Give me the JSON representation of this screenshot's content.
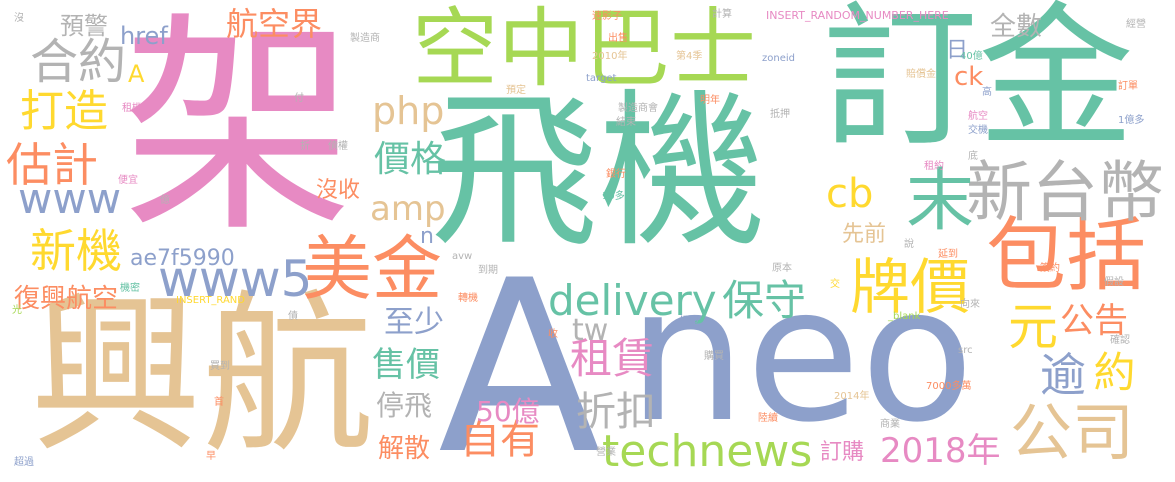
{
  "colors": {
    "green": "#66c2a5",
    "orange": "#fc8d62",
    "blue": "#8da0cb",
    "pink": "#e78ac3",
    "lime": "#a6d854",
    "yellow": "#ffd92f",
    "tan": "#e5c494",
    "gray": "#b3b3b3"
  },
  "words": [
    {
      "text": "飛機",
      "color": "#66c2a5"
    },
    {
      "text": "架",
      "color": "#e78ac3"
    },
    {
      "text": "興航",
      "color": "#e5c494"
    },
    {
      "text": "A",
      "color": "#8da0cb"
    },
    {
      "text": "neo",
      "color": "#8da0cb"
    },
    {
      "text": "訂金",
      "color": "#66c2a5"
    },
    {
      "text": "空中巴士",
      "color": "#a6d854"
    },
    {
      "text": "包括",
      "color": "#fc8d62"
    },
    {
      "text": "新台幣",
      "color": "#b3b3b3"
    },
    {
      "text": "末",
      "color": "#66c2a5"
    },
    {
      "text": "美金",
      "color": "#fc8d62"
    },
    {
      "text": "公司",
      "color": "#e5c494"
    },
    {
      "text": "合約",
      "color": "#b3b3b3"
    },
    {
      "text": "牌價",
      "color": "#ffd92f"
    },
    {
      "text": "www5",
      "color": "#8da0cb"
    },
    {
      "text": "delivery",
      "color": "#66c2a5"
    },
    {
      "text": "保守",
      "color": "#66c2a5"
    },
    {
      "text": "technews",
      "color": "#a6d854"
    },
    {
      "text": "航空界",
      "color": "#fc8d62"
    },
    {
      "text": "打造",
      "color": "#ffd92f"
    },
    {
      "text": "估計",
      "color": "#fc8d62"
    },
    {
      "text": "新機",
      "color": "#ffd92f"
    },
    {
      "text": "www",
      "color": "#8da0cb"
    },
    {
      "text": "php",
      "color": "#e5c494"
    },
    {
      "text": "價格",
      "color": "#66c2a5"
    },
    {
      "text": "amp",
      "color": "#e5c494"
    },
    {
      "text": "cb",
      "color": "#ffd92f"
    },
    {
      "text": "元",
      "color": "#ffd92f"
    },
    {
      "text": "公告",
      "color": "#fc8d62"
    },
    {
      "text": "逾",
      "color": "#8da0cb"
    },
    {
      "text": "約",
      "color": "#ffd92f"
    },
    {
      "text": "租賃",
      "color": "#e78ac3"
    },
    {
      "text": "tw",
      "color": "#b3b3b3"
    },
    {
      "text": "自有",
      "color": "#fc8d62"
    },
    {
      "text": "折扣",
      "color": "#b3b3b3"
    },
    {
      "text": "售價",
      "color": "#66c2a5"
    },
    {
      "text": "2018年",
      "color": "#e78ac3"
    },
    {
      "text": "至少",
      "color": "#8da0cb"
    },
    {
      "text": "50億",
      "color": "#e78ac3"
    },
    {
      "text": "停飛",
      "color": "#b3b3b3"
    },
    {
      "text": "解散",
      "color": "#fc8d62"
    },
    {
      "text": "復興航空",
      "color": "#fc8d62"
    },
    {
      "text": "ae7f5990",
      "color": "#8da0cb"
    },
    {
      "text": "沒收",
      "color": "#fc8d62"
    },
    {
      "text": "預警",
      "color": "#b3b3b3"
    },
    {
      "text": "href",
      "color": "#8da0cb"
    },
    {
      "text": "全數",
      "color": "#b3b3b3"
    },
    {
      "text": "先前",
      "color": "#e5c494"
    },
    {
      "text": "訂購",
      "color": "#e78ac3"
    },
    {
      "text": "ck",
      "color": "#fc8d62"
    },
    {
      "text": "日",
      "color": "#8da0cb"
    },
    {
      "text": "A",
      "color": "#ffd92f"
    },
    {
      "text": "n",
      "color": "#8da0cb"
    },
    {
      "text": "速影子",
      "color": "#fc8d62"
    },
    {
      "text": "計算",
      "color": "#b3b3b3"
    },
    {
      "text": "INSERT_RANDOM_NUMBER_HERE",
      "color": "#e78ac3"
    },
    {
      "text": "經營",
      "color": "#b3b3b3"
    },
    {
      "text": "製造商",
      "color": "#b3b3b3"
    },
    {
      "text": "出售",
      "color": "#fc8d62"
    },
    {
      "text": "2010年",
      "color": "#e5c494"
    },
    {
      "text": "第4季",
      "color": "#e5c494"
    },
    {
      "text": "zoneid",
      "color": "#8da0cb"
    },
    {
      "text": "40億",
      "color": "#66c2a5"
    },
    {
      "text": "target",
      "color": "#8da0cb"
    },
    {
      "text": "預定",
      "color": "#e5c494"
    },
    {
      "text": "賠償金",
      "color": "#e5c494"
    },
    {
      "text": "高",
      "color": "#8da0cb"
    },
    {
      "text": "訂單",
      "color": "#fc8d62"
    },
    {
      "text": "明年",
      "color": "#fc8d62"
    },
    {
      "text": "抵押",
      "color": "#b3b3b3"
    },
    {
      "text": "製造商會",
      "color": "#b3b3b3"
    },
    {
      "text": "結束",
      "color": "#b3b3b3"
    },
    {
      "text": "1億多",
      "color": "#8da0cb"
    },
    {
      "text": "航空",
      "color": "#e78ac3"
    },
    {
      "text": "交機",
      "color": "#8da0cb"
    },
    {
      "text": "租約",
      "color": "#e78ac3"
    },
    {
      "text": "銀行",
      "color": "#fc8d62"
    },
    {
      "text": "10多億",
      "color": "#66c2a5"
    },
    {
      "text": "底",
      "color": "#b3b3b3"
    },
    {
      "text": "沒",
      "color": "#b3b3b3"
    },
    {
      "text": "付",
      "color": "#b3b3b3"
    },
    {
      "text": "租機",
      "color": "#e78ac3"
    },
    {
      "text": "債權",
      "color": "#b3b3b3"
    },
    {
      "text": "便宜",
      "color": "#e78ac3"
    },
    {
      "text": "折",
      "color": "#b3b3b3"
    },
    {
      "text": "億",
      "color": "#b3b3b3"
    },
    {
      "text": "機密",
      "color": "#66c2a5"
    },
    {
      "text": "INSERT_RAND",
      "color": "#ffd92f"
    },
    {
      "text": "光",
      "color": "#a6d854"
    },
    {
      "text": "債",
      "color": "#b3b3b3"
    },
    {
      "text": "avw",
      "color": "#b3b3b3"
    },
    {
      "text": "到期",
      "color": "#b3b3b3"
    },
    {
      "text": "轉機",
      "color": "#fc8d62"
    },
    {
      "text": "原本",
      "color": "#b3b3b3"
    },
    {
      "text": "延到",
      "color": "#fc8d62"
    },
    {
      "text": "說",
      "color": "#b3b3b3"
    },
    {
      "text": "簽約",
      "color": "#fc8d62"
    },
    {
      "text": "假設",
      "color": "#b3b3b3"
    },
    {
      "text": "向來",
      "color": "#b3b3b3"
    },
    {
      "text": "交",
      "color": "#ffd92f"
    },
    {
      "text": "_blank",
      "color": "#a6d854"
    },
    {
      "text": "img",
      "color": "#8da0cb"
    },
    {
      "text": "收",
      "color": "#fc8d62"
    },
    {
      "text": "確認",
      "color": "#b3b3b3"
    },
    {
      "text": "購買",
      "color": "#b3b3b3"
    },
    {
      "text": "src",
      "color": "#b3b3b3"
    },
    {
      "text": "7000多萬",
      "color": "#fc8d62"
    },
    {
      "text": "2014年",
      "color": "#e5c494"
    },
    {
      "text": "買到",
      "color": "#b3b3b3"
    },
    {
      "text": "首",
      "color": "#fc8d62"
    },
    {
      "text": "陸續",
      "color": "#fc8d62"
    },
    {
      "text": "商業",
      "color": "#b3b3b3"
    },
    {
      "text": "早",
      "color": "#fc8d62"
    },
    {
      "text": "營業",
      "color": "#b3b3b3"
    },
    {
      "text": "超過",
      "color": "#8da0cb"
    }
  ]
}
